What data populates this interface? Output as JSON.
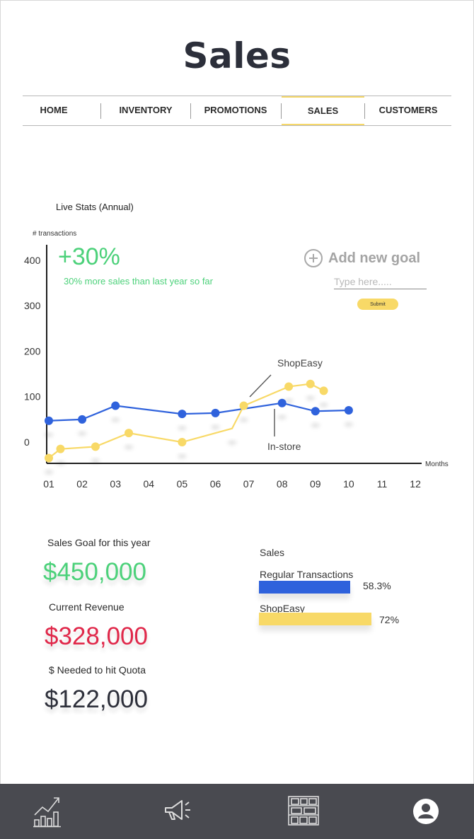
{
  "page": {
    "title": "Sales"
  },
  "nav": {
    "tabs": [
      {
        "label": "HOME"
      },
      {
        "label": "INVENTORY"
      },
      {
        "label": "PROMOTIONS"
      },
      {
        "label": "SALES"
      },
      {
        "label": "CUSTOMERS"
      }
    ],
    "active": "SALES"
  },
  "live_stats": {
    "label": "Live Stats (Annual)",
    "growth_value": "+30%",
    "growth_caption": "30% more sales than last year so far",
    "add_goal_label": "Add new goal",
    "goal_input_placeholder": "Type here.....",
    "submit_label": "Submit"
  },
  "chart_data": {
    "type": "line",
    "title": "Live Stats (Annual)",
    "ylabel": "# transactions",
    "xlabel": "Months",
    "x": [
      "01",
      "02",
      "03",
      "04",
      "05",
      "06",
      "07",
      "08",
      "09",
      "10",
      "11",
      "12"
    ],
    "ylim": [
      -50,
      450
    ],
    "yticks": [
      0,
      100,
      200,
      300,
      400
    ],
    "series": [
      {
        "name": "In-store",
        "color": "#2f62dc",
        "points": [
          [
            1,
            47
          ],
          [
            2,
            50
          ],
          [
            3,
            80
          ],
          [
            5,
            62
          ],
          [
            6,
            64
          ],
          [
            8,
            86
          ],
          [
            9,
            68
          ],
          [
            10,
            70
          ]
        ]
      },
      {
        "name": "ShopEasy",
        "color": "#f8d967",
        "points": [
          [
            1,
            -35
          ],
          [
            1.35,
            -15
          ],
          [
            2.4,
            -10
          ],
          [
            3.4,
            20
          ],
          [
            5,
            0
          ],
          [
            6.5,
            30
          ],
          [
            6.85,
            80
          ],
          [
            8.2,
            122
          ],
          [
            8.85,
            128
          ],
          [
            9.25,
            113
          ]
        ]
      }
    ]
  },
  "stats": {
    "goal_label": "Sales Goal for this year",
    "goal_value": "$450,000",
    "revenue_label": "Current Revenue",
    "revenue_value": "$328,000",
    "needed_label": "$ Needed to hit Quota",
    "needed_value": "$122,000"
  },
  "sales_breakdown": {
    "title": "Sales",
    "items": [
      {
        "label": "Regular Transactions",
        "value": 58.3,
        "display": "58.3%",
        "color": "#2f62dc"
      },
      {
        "label": "ShopEasy",
        "value": 72,
        "display": "72%",
        "color": "#f8d967"
      }
    ]
  },
  "bottom_nav": {
    "icons": [
      "analytics-chart-icon",
      "megaphone-icon",
      "inventory-shelves-icon",
      "user-profile-icon"
    ]
  }
}
